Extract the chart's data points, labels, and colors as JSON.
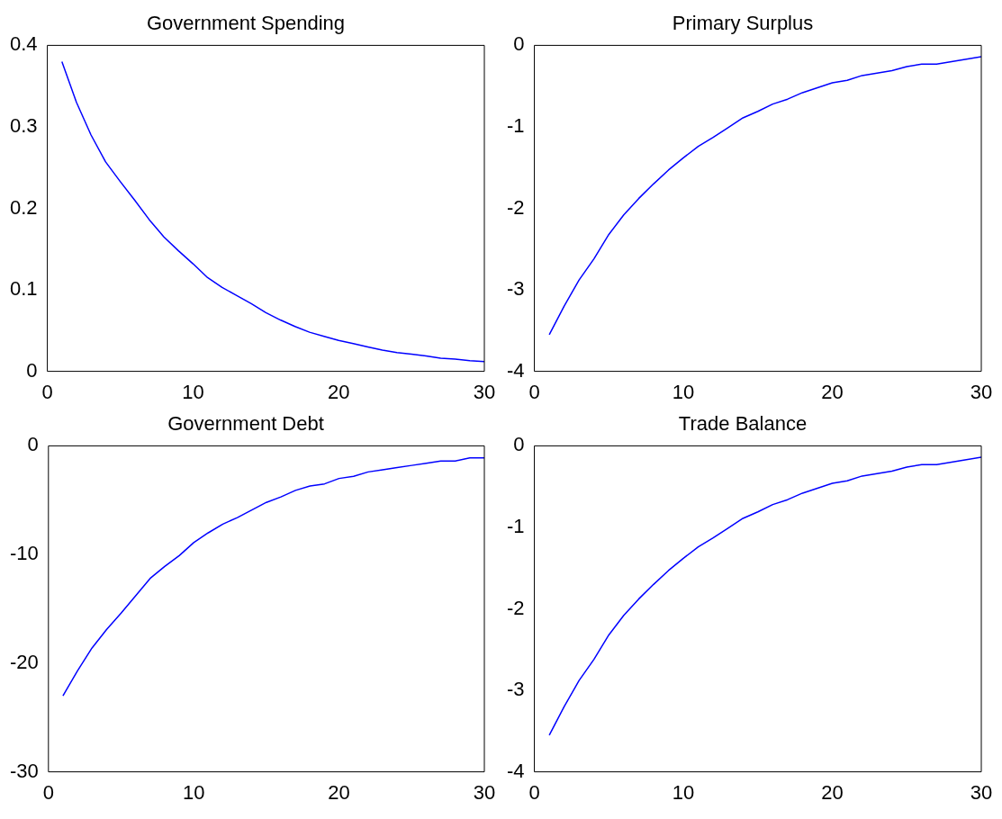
{
  "chart_data": [
    {
      "type": "line",
      "title": "Government Spending",
      "x": [
        1,
        2,
        3,
        4,
        5,
        6,
        7,
        8,
        9,
        10,
        11,
        12,
        13,
        14,
        15,
        16,
        17,
        18,
        19,
        20,
        21,
        22,
        23,
        24,
        25,
        26,
        27,
        28,
        29,
        30
      ],
      "series": [
        {
          "color": "#0000ff",
          "values": [
            0.38,
            0.33,
            0.29,
            0.257,
            0.233,
            0.21,
            0.186,
            0.165,
            0.148,
            0.132,
            0.115,
            0.103,
            0.093,
            0.083,
            0.072,
            0.063,
            0.055,
            0.048,
            0.043,
            0.038,
            0.034,
            0.03,
            0.026,
            0.023,
            0.021,
            0.019,
            0.016,
            0.015,
            0.013,
            0.012
          ]
        }
      ],
      "xlim": [
        0,
        30
      ],
      "xticks": [
        0,
        10,
        20,
        30
      ],
      "ylim": [
        0,
        0.4
      ],
      "yticks": [
        0,
        0.1,
        0.2,
        0.3,
        0.4
      ],
      "grid": false,
      "legend": false,
      "marker": "none",
      "line_style": "solid"
    },
    {
      "type": "line",
      "title": "Primary Surplus",
      "x": [
        1,
        2,
        3,
        4,
        5,
        6,
        7,
        8,
        9,
        10,
        11,
        12,
        13,
        14,
        15,
        16,
        17,
        18,
        19,
        20,
        21,
        22,
        23,
        24,
        25,
        26,
        27,
        28,
        29,
        30
      ],
      "series": [
        {
          "color": "#0000ff",
          "values": [
            -3.55,
            -3.2,
            -2.88,
            -2.62,
            -2.32,
            -2.08,
            -1.88,
            -1.7,
            -1.53,
            -1.38,
            -1.24,
            -1.13,
            -1.01,
            -0.89,
            -0.81,
            -0.72,
            -0.66,
            -0.58,
            -0.52,
            -0.46,
            -0.43,
            -0.37,
            -0.34,
            -0.31,
            -0.26,
            -0.23,
            -0.23,
            -0.2,
            -0.17,
            -0.14
          ]
        }
      ],
      "xlim": [
        0,
        30
      ],
      "xticks": [
        0,
        10,
        20,
        30
      ],
      "ylim": [
        -4,
        0
      ],
      "yticks": [
        -4,
        -3,
        -2,
        -1,
        0
      ],
      "grid": false,
      "legend": false,
      "marker": "none",
      "line_style": "solid"
    },
    {
      "type": "line",
      "title": "Government Debt",
      "x": [
        1,
        2,
        3,
        4,
        5,
        6,
        7,
        8,
        9,
        10,
        11,
        12,
        13,
        14,
        15,
        16,
        17,
        18,
        19,
        20,
        21,
        22,
        23,
        24,
        25,
        26,
        27,
        28,
        29,
        30
      ],
      "series": [
        {
          "color": "#0000ff",
          "values": [
            -23,
            -20.7,
            -18.6,
            -16.9,
            -15.4,
            -13.8,
            -12.2,
            -11.1,
            -10.1,
            -8.9,
            -8,
            -7.2,
            -6.6,
            -5.9,
            -5.2,
            -4.7,
            -4.1,
            -3.7,
            -3.5,
            -3,
            -2.8,
            -2.4,
            -2.2,
            -2,
            -1.8,
            -1.6,
            -1.4,
            -1.4,
            -1.1,
            -1.1
          ]
        }
      ],
      "xlim": [
        0,
        30
      ],
      "xticks": [
        0,
        10,
        20,
        30
      ],
      "ylim": [
        -30,
        0
      ],
      "yticks": [
        -30,
        -20,
        -10,
        0
      ],
      "grid": false,
      "legend": false,
      "marker": "none",
      "line_style": "solid"
    },
    {
      "type": "line",
      "title": "Trade Balance",
      "x": [
        1,
        2,
        3,
        4,
        5,
        6,
        7,
        8,
        9,
        10,
        11,
        12,
        13,
        14,
        15,
        16,
        17,
        18,
        19,
        20,
        21,
        22,
        23,
        24,
        25,
        26,
        27,
        28,
        29,
        30
      ],
      "series": [
        {
          "color": "#0000ff",
          "values": [
            -3.55,
            -3.2,
            -2.88,
            -2.62,
            -2.32,
            -2.08,
            -1.88,
            -1.7,
            -1.53,
            -1.38,
            -1.24,
            -1.13,
            -1.01,
            -0.89,
            -0.81,
            -0.72,
            -0.66,
            -0.58,
            -0.52,
            -0.46,
            -0.43,
            -0.37,
            -0.34,
            -0.31,
            -0.26,
            -0.23,
            -0.23,
            -0.2,
            -0.17,
            -0.14
          ]
        }
      ],
      "xlim": [
        0,
        30
      ],
      "xticks": [
        0,
        10,
        20,
        30
      ],
      "ylim": [
        -4,
        0
      ],
      "yticks": [
        -4,
        -3,
        -2,
        -1,
        0
      ],
      "grid": false,
      "legend": false,
      "marker": "none",
      "line_style": "solid"
    }
  ]
}
